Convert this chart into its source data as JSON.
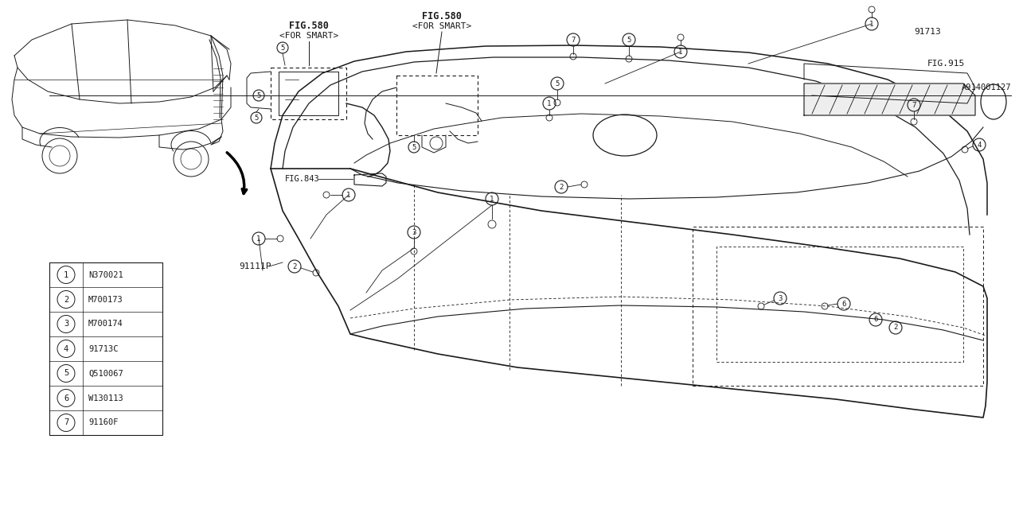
{
  "bg_color": "#ffffff",
  "line_color": "#1a1a1a",
  "parts_list": [
    {
      "num": "1",
      "code": "N370021"
    },
    {
      "num": "2",
      "code": "M700173"
    },
    {
      "num": "3",
      "code": "M700174"
    },
    {
      "num": "4",
      "code": "91713C"
    },
    {
      "num": "5",
      "code": "Q510067"
    },
    {
      "num": "6",
      "code": "W130113"
    },
    {
      "num": "7",
      "code": "91160F"
    }
  ],
  "part_label_91111P": "91111P",
  "part_label_91713": "91713",
  "diagram_id": "A914001127",
  "fig915": "FIG.915",
  "fig843": "FIG.843",
  "fig580a": "FIG.580",
  "fig580a2": "<FOR SMART>",
  "fig580b": "FIG.580",
  "fig580b2": "<FOR SMART>"
}
